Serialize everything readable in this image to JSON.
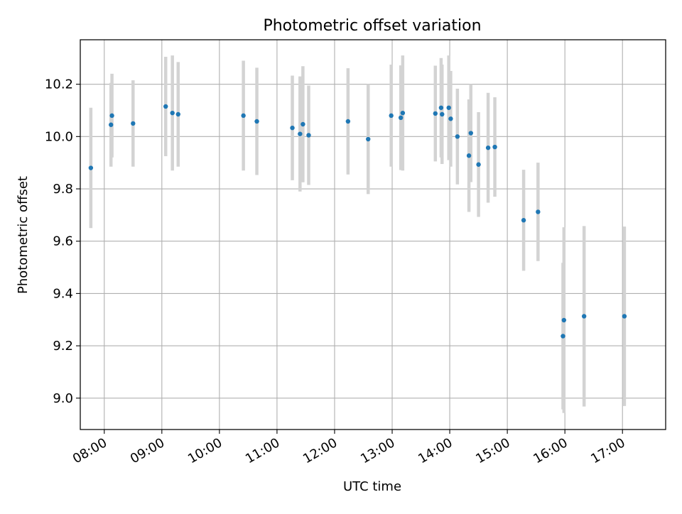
{
  "chart_data": {
    "type": "scatter",
    "title": "Photometric offset variation",
    "xlabel": "UTC time",
    "ylabel": "Photometric offset",
    "xlim": [
      "07:35",
      "17:45"
    ],
    "ylim": [
      8.88,
      10.37
    ],
    "x_ticks": [
      "08:00",
      "09:00",
      "10:00",
      "11:00",
      "12:00",
      "13:00",
      "14:00",
      "15:00",
      "16:00",
      "17:00"
    ],
    "y_ticks": [
      "9.0",
      "9.2",
      "9.4",
      "9.6",
      "9.8",
      "10.0",
      "10.2"
    ],
    "grid": true,
    "colors": {
      "point": "#1f77b4",
      "errorbar": "#d3d3d3",
      "grid": "#b0b0b0"
    },
    "points": [
      {
        "x": "07:46",
        "y": 9.88,
        "yerr": 0.23
      },
      {
        "x": "08:07",
        "y": 10.045,
        "yerr": 0.16
      },
      {
        "x": "08:08",
        "y": 10.08,
        "yerr": 0.16
      },
      {
        "x": "08:30",
        "y": 10.05,
        "yerr": 0.165
      },
      {
        "x": "09:04",
        "y": 10.115,
        "yerr": 0.19
      },
      {
        "x": "09:11",
        "y": 10.09,
        "yerr": 0.22
      },
      {
        "x": "09:17",
        "y": 10.085,
        "yerr": 0.2
      },
      {
        "x": "10:25",
        "y": 10.08,
        "yerr": 0.21
      },
      {
        "x": "10:39",
        "y": 10.058,
        "yerr": 0.205
      },
      {
        "x": "11:16",
        "y": 10.033,
        "yerr": 0.2
      },
      {
        "x": "11:24",
        "y": 10.01,
        "yerr": 0.22
      },
      {
        "x": "11:27",
        "y": 10.047,
        "yerr": 0.222
      },
      {
        "x": "11:33",
        "y": 10.005,
        "yerr": 0.19
      },
      {
        "x": "12:14",
        "y": 10.058,
        "yerr": 0.203
      },
      {
        "x": "12:35",
        "y": 9.99,
        "yerr": 0.21
      },
      {
        "x": "12:59",
        "y": 10.08,
        "yerr": 0.195
      },
      {
        "x": "13:09",
        "y": 10.072,
        "yerr": 0.2
      },
      {
        "x": "13:11",
        "y": 10.09,
        "yerr": 0.22
      },
      {
        "x": "13:45",
        "y": 10.088,
        "yerr": 0.183
      },
      {
        "x": "13:51",
        "y": 10.11,
        "yerr": 0.19
      },
      {
        "x": "13:52",
        "y": 10.085,
        "yerr": 0.19
      },
      {
        "x": "13:59",
        "y": 10.11,
        "yerr": 0.2
      },
      {
        "x": "14:01",
        "y": 10.068,
        "yerr": 0.183
      },
      {
        "x": "14:08",
        "y": 10.0,
        "yerr": 0.183
      },
      {
        "x": "14:20",
        "y": 9.927,
        "yerr": 0.215
      },
      {
        "x": "14:22",
        "y": 10.013,
        "yerr": 0.187
      },
      {
        "x": "14:30",
        "y": 9.893,
        "yerr": 0.2
      },
      {
        "x": "14:40",
        "y": 9.957,
        "yerr": 0.21
      },
      {
        "x": "14:47",
        "y": 9.96,
        "yerr": 0.19
      },
      {
        "x": "15:17",
        "y": 9.68,
        "yerr": 0.193
      },
      {
        "x": "15:32",
        "y": 9.712,
        "yerr": 0.188
      },
      {
        "x": "15:58",
        "y": 9.237,
        "yerr": 0.28
      },
      {
        "x": "15:59",
        "y": 9.298,
        "yerr": 0.355
      },
      {
        "x": "16:20",
        "y": 9.313,
        "yerr": 0.345
      },
      {
        "x": "17:02",
        "y": 9.313,
        "yerr": 0.343
      }
    ]
  }
}
